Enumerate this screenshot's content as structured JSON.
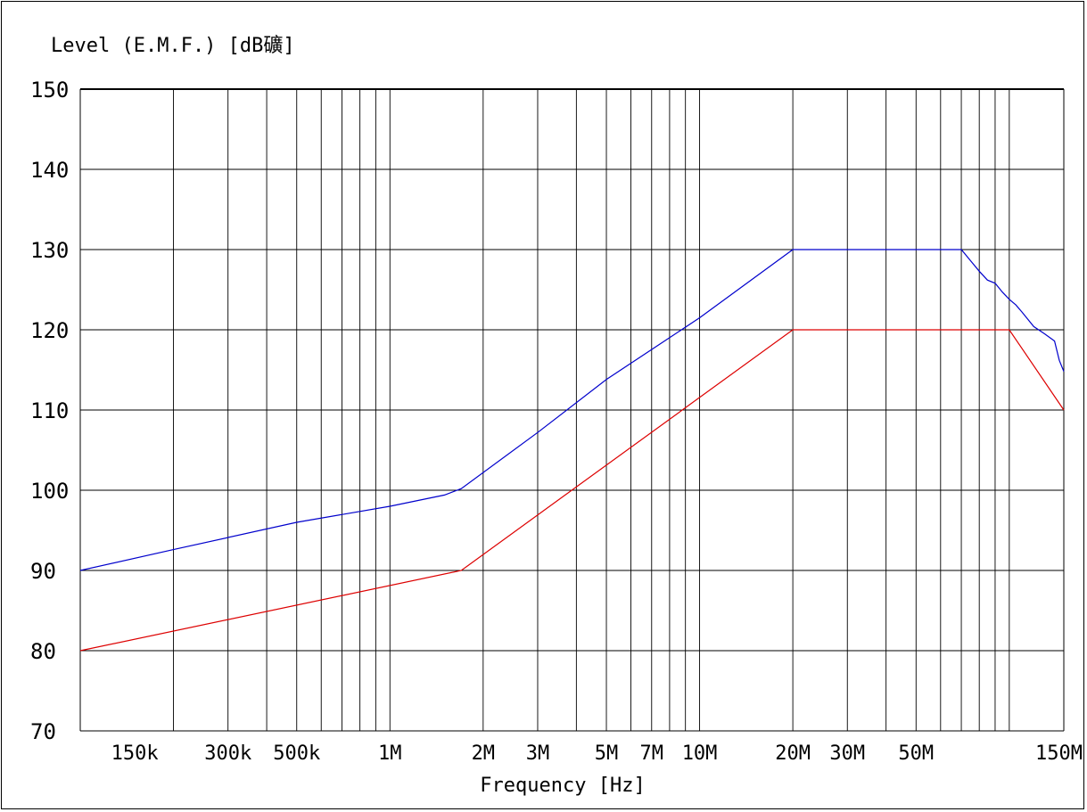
{
  "chart_data": {
    "type": "line",
    "ylabel": "Level (E.M.F.) [dB礦]",
    "xlabel": "Frequency [Hz]",
    "x_scale": "log",
    "xlim": [
      100000,
      150000000
    ],
    "ylim": [
      70,
      150
    ],
    "x_ticks": [
      {
        "value": 150000,
        "label": "150k"
      },
      {
        "value": 300000,
        "label": "300k"
      },
      {
        "value": 500000,
        "label": "500k"
      },
      {
        "value": 1000000,
        "label": "1M"
      },
      {
        "value": 2000000,
        "label": "2M"
      },
      {
        "value": 3000000,
        "label": "3M"
      },
      {
        "value": 5000000,
        "label": "5M"
      },
      {
        "value": 7000000,
        "label": "7M"
      },
      {
        "value": 10000000,
        "label": "10M"
      },
      {
        "value": 20000000,
        "label": "20M"
      },
      {
        "value": 30000000,
        "label": "30M"
      },
      {
        "value": 50000000,
        "label": "50M"
      },
      {
        "value": 150000000,
        "label": "150M"
      }
    ],
    "y_ticks": [
      {
        "value": 70,
        "label": "70"
      },
      {
        "value": 80,
        "label": "80"
      },
      {
        "value": 90,
        "label": "90"
      },
      {
        "value": 100,
        "label": "100"
      },
      {
        "value": 110,
        "label": "110"
      },
      {
        "value": 120,
        "label": "120"
      },
      {
        "value": 130,
        "label": "130"
      },
      {
        "value": 140,
        "label": "140"
      },
      {
        "value": 150,
        "label": "150"
      }
    ],
    "grid": true,
    "legend": "none",
    "series": [
      {
        "color": "#0000cc",
        "x": [
          100000,
          200000,
          500000,
          1000000,
          1500000,
          1700000,
          3000000,
          5000000,
          10000000,
          20000000,
          70000000,
          75000000,
          80000000,
          85000000,
          90000000,
          95000000,
          100000000,
          105000000,
          110000000,
          120000000,
          130000000,
          140000000,
          145000000,
          150000000
        ],
        "y": [
          90,
          92.6,
          96,
          98,
          99.4,
          100.2,
          107.2,
          113.8,
          121.5,
          130,
          130,
          128.6,
          127.3,
          126.2,
          125.8,
          124.7,
          123.8,
          123.1,
          122.2,
          120.4,
          119.5,
          118.6,
          116.2,
          114.8
        ]
      },
      {
        "color": "#dd0000",
        "x": [
          100000,
          1700000,
          20000000,
          100000000,
          150000000
        ],
        "y": [
          80,
          90,
          120,
          120,
          110
        ]
      }
    ]
  }
}
